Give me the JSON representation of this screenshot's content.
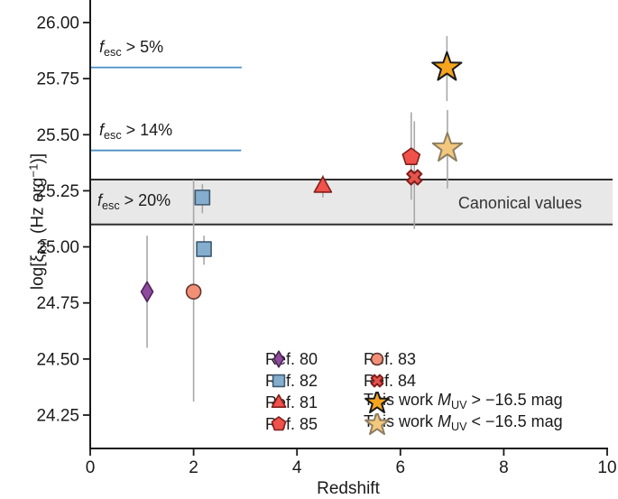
{
  "chart_data": {
    "type": "scatter",
    "xlabel": "Redshift",
    "ylabel_parts": [
      {
        "t": "log[ξ"
      },
      {
        "t": "ion",
        "s": "sub"
      },
      {
        "t": " (Hz erg"
      },
      {
        "t": "−1",
        "s": "sup"
      },
      {
        "t": ")]"
      }
    ],
    "xlim": [
      0,
      10
    ],
    "ylim": [
      24.1,
      26.1
    ],
    "x_tick_values": [
      0,
      2,
      4,
      6,
      8,
      10
    ],
    "x_tick_labels": [
      "0",
      "2",
      "4",
      "6",
      "8",
      "10"
    ],
    "y_tick_values": [
      26.0,
      25.75,
      25.5,
      25.25,
      25.0,
      24.75,
      24.5,
      24.25
    ],
    "y_tick_labels": [
      "26.00",
      "25.75",
      "25.50",
      "25.25",
      "25.00",
      "24.75",
      "24.50",
      "24.25"
    ],
    "grid": false,
    "colors": {
      "axis": "#1a1a1a",
      "error_bar": "#a8a8a8",
      "escape_line": "#4e8fc6",
      "band_fill": "#e8e8e8",
      "band_border": "#2f2f2f"
    },
    "annotations": {
      "escape_fraction_labels": [
        {
          "parts": [
            {
              "t": "f",
              "s": "i"
            },
            {
              "t": "esc",
              "s": "sub"
            },
            {
              "t": " > 5%"
            }
          ],
          "line_y": 25.8,
          "line_x_end": 2.93
        },
        {
          "parts": [
            {
              "t": "f",
              "s": "i"
            },
            {
              "t": "esc",
              "s": "sub"
            },
            {
              "t": " > 14%"
            }
          ],
          "line_y": 25.43,
          "line_x_end": 2.92
        },
        {
          "parts": [
            {
              "t": "f",
              "s": "i"
            },
            {
              "t": "esc",
              "s": "sub"
            },
            {
              "t": " > 20%"
            }
          ],
          "line_y": null,
          "line_x_end": null
        }
      ],
      "band": {
        "ylo": 25.1,
        "yhi": 25.3,
        "label": "Canonical values"
      }
    },
    "series": [
      {
        "name": "Ref. 80",
        "label_parts": [
          {
            "t": "Ref. 80"
          }
        ],
        "marker": "diamond",
        "fill": "#8e4b9e",
        "stroke": "#4f2458",
        "points": [
          {
            "x": 1.1,
            "y": 24.8,
            "ylo": 24.55,
            "yhi": 25.05
          }
        ]
      },
      {
        "name": "Ref. 82",
        "label_parts": [
          {
            "t": "Ref. 82"
          }
        ],
        "marker": "square",
        "fill": "#85adcd",
        "stroke": "#3e5a70",
        "points": [
          {
            "x": 2.17,
            "y": 25.22,
            "ylo": 25.15,
            "yhi": 25.28
          },
          {
            "x": 2.2,
            "y": 24.99,
            "ylo": 24.92,
            "yhi": 25.05
          }
        ]
      },
      {
        "name": "Ref. 81",
        "label_parts": [
          {
            "t": "Ref. 81"
          }
        ],
        "marker": "triangle",
        "fill": "#f0514a",
        "stroke": "#801e1a",
        "points": [
          {
            "x": 4.5,
            "y": 25.27,
            "ylo": 25.22,
            "yhi": 25.32
          }
        ]
      },
      {
        "name": "Ref. 85",
        "label_parts": [
          {
            "t": "Ref. 85"
          }
        ],
        "marker": "pentagon",
        "fill": "#f0514a",
        "stroke": "#801e1a",
        "points": [
          {
            "x": 6.21,
            "y": 25.4,
            "ylo": 25.21,
            "yhi": 25.6
          }
        ]
      },
      {
        "name": "Ref. 83",
        "label_parts": [
          {
            "t": "Ref. 83"
          }
        ],
        "marker": "circle",
        "fill": "#f29077",
        "stroke": "#5f372e",
        "points": [
          {
            "x": 2.0,
            "y": 24.8,
            "ylo": 24.31,
            "yhi": 25.3
          }
        ]
      },
      {
        "name": "Ref. 84",
        "label_parts": [
          {
            "t": "Ref. 84"
          }
        ],
        "marker": "cross",
        "fill": "#e4554e",
        "stroke": "#801e1a",
        "points": [
          {
            "x": 6.27,
            "y": 25.31,
            "ylo": 25.08,
            "yhi": 25.56
          }
        ]
      },
      {
        "name": "This work M_UV > −16.5 mag",
        "label_parts": [
          {
            "t": "This work "
          },
          {
            "t": "M",
            "s": "i"
          },
          {
            "t": "UV",
            "s": "sub"
          },
          {
            "t": " > −16.5 mag"
          }
        ],
        "marker": "star",
        "fill": "#f7a51e",
        "stroke": "#1a1a1a",
        "points": [
          {
            "x": 6.9,
            "y": 25.8,
            "ylo": 25.65,
            "yhi": 25.94
          }
        ]
      },
      {
        "name": "This work M_UV < −16.5 mag",
        "label_parts": [
          {
            "t": "This work "
          },
          {
            "t": "M",
            "s": "i"
          },
          {
            "t": "UV",
            "s": "sub"
          },
          {
            "t": " < −16.5 mag"
          }
        ],
        "marker": "star",
        "fill": "#f3c87e",
        "stroke": "#8e7f62",
        "points": [
          {
            "x": 6.91,
            "y": 25.44,
            "ylo": 25.26,
            "yhi": 25.61
          }
        ]
      }
    ],
    "legend": {
      "position": "lower center-right",
      "columns": [
        {
          "entries": [
            {
              "series": 0
            },
            {
              "series": 1
            },
            {
              "series": 2
            },
            {
              "series": 3
            }
          ]
        },
        {
          "entries": [
            {
              "series": 4
            },
            {
              "series": 5
            },
            {
              "series": 6
            },
            {
              "series": 7
            }
          ]
        }
      ]
    }
  }
}
